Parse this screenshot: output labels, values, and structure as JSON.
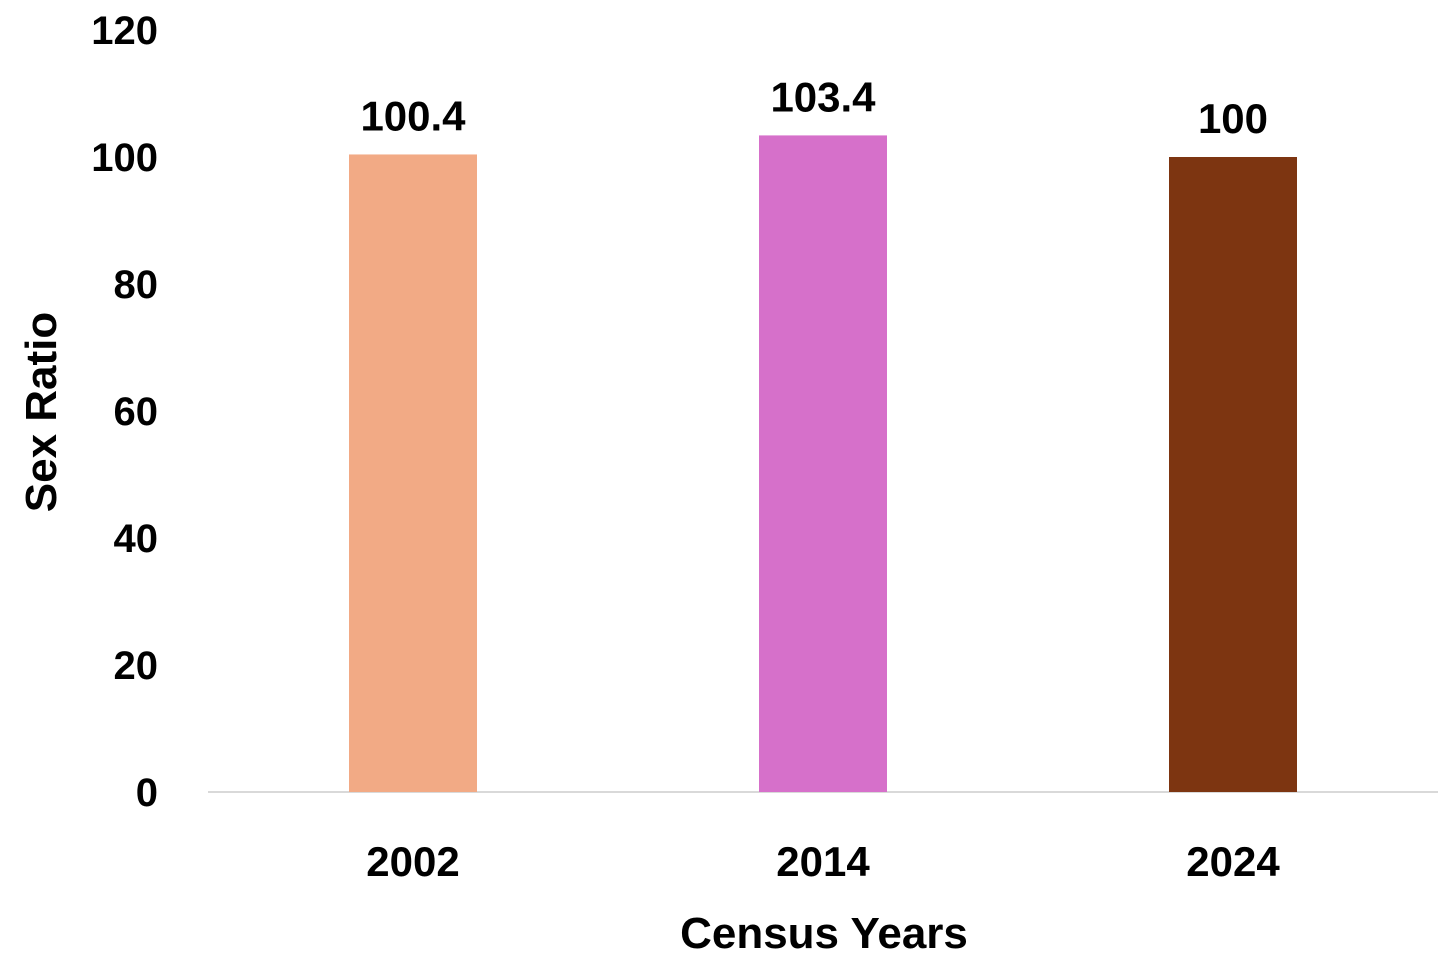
{
  "chart_data": {
    "type": "bar",
    "title": "",
    "xlabel": "Census Years",
    "ylabel": "Sex Ratio",
    "categories": [
      "2002",
      "2014",
      "2024"
    ],
    "values": [
      100.4,
      103.4,
      100
    ],
    "data_labels": [
      "100.4",
      "103.4",
      "100"
    ],
    "bar_colors": [
      "#F2AA85",
      "#D670CA",
      "#7D3511"
    ],
    "ylim": [
      0,
      120
    ],
    "yticks": [
      0,
      20,
      40,
      60,
      80,
      100,
      120
    ],
    "grid": false,
    "legend": "none"
  }
}
